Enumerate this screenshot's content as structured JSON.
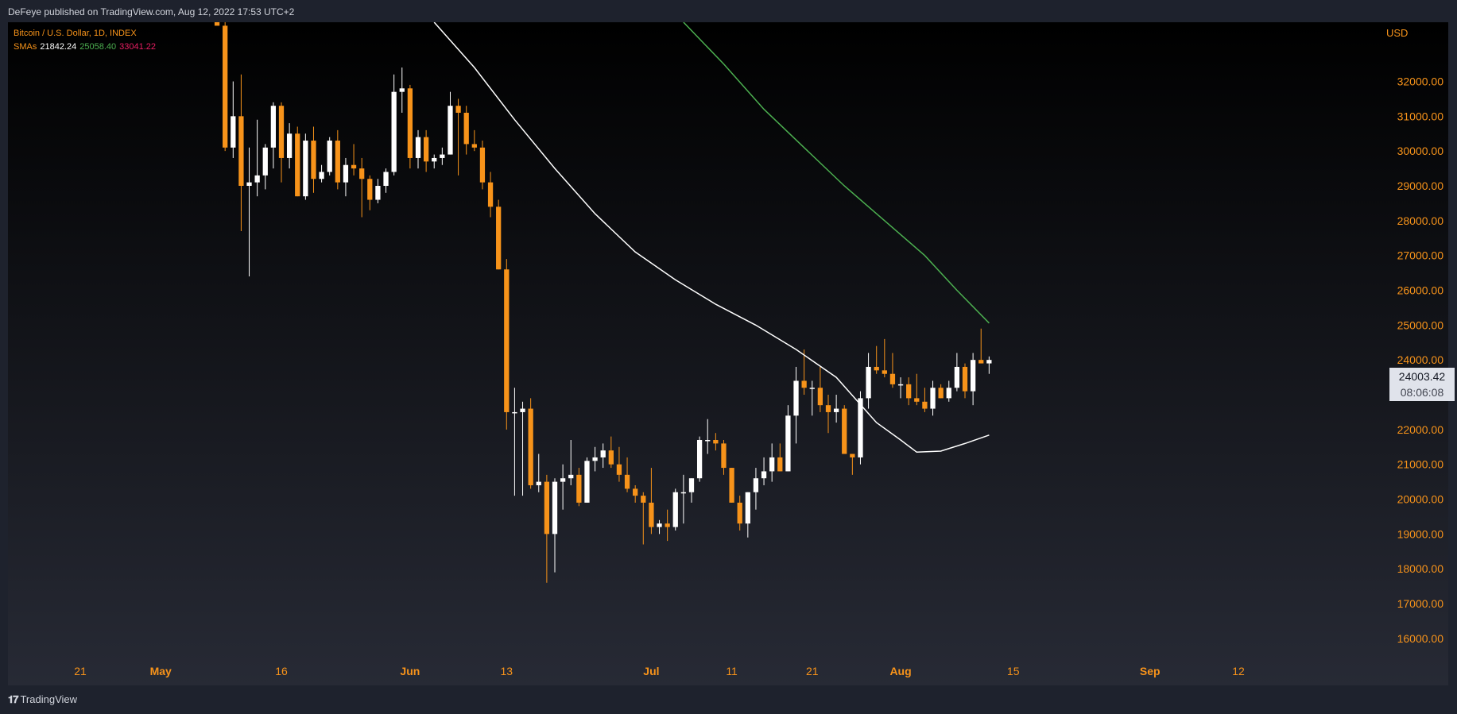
{
  "header": {
    "published": "DeFeye published on TradingView.com, Aug 12, 2022 17:53 UTC+2"
  },
  "legend": {
    "symbol": "Bitcoin / U.S. Dollar, 1D, INDEX",
    "sma_label": "SMAs",
    "sma_values": [
      "21842.24",
      "25058.40",
      "33041.22"
    ]
  },
  "price_tag": {
    "price": "24003.42",
    "countdown": "08:06:08"
  },
  "footer": {
    "brand": "TradingView"
  },
  "colors": {
    "background_top": "#000000",
    "background_bottom": "#272a35",
    "up_candle": "#ffffff",
    "down_candle": "#f7931a",
    "axis_text": "#f7931a",
    "sma_short": "#ffffff",
    "sma_medium": "#4caf50",
    "sma_long": "#e91e63"
  },
  "chart_data": {
    "type": "candlestick",
    "currency": "USD",
    "y_ticks": [
      16000,
      17000,
      18000,
      19000,
      20000,
      21000,
      22000,
      23000,
      24000,
      25000,
      26000,
      27000,
      28000,
      29000,
      30000,
      31000,
      32000
    ],
    "ylim": [
      15700,
      33700
    ],
    "x_ticks": [
      {
        "date": "2022-04-21",
        "label": "21",
        "bold": false
      },
      {
        "date": "2022-05-01",
        "label": "May",
        "bold": true
      },
      {
        "date": "2022-05-16",
        "label": "16",
        "bold": false
      },
      {
        "date": "2022-06-01",
        "label": "Jun",
        "bold": true
      },
      {
        "date": "2022-06-13",
        "label": "13",
        "bold": false
      },
      {
        "date": "2022-07-01",
        "label": "Jul",
        "bold": true
      },
      {
        "date": "2022-07-11",
        "label": "11",
        "bold": false
      },
      {
        "date": "2022-07-21",
        "label": "21",
        "bold": false
      },
      {
        "date": "2022-08-01",
        "label": "Aug",
        "bold": true
      },
      {
        "date": "2022-08-15",
        "label": "15",
        "bold": false
      },
      {
        "date": "2022-09-01",
        "label": "Sep",
        "bold": true
      },
      {
        "date": "2022-09-12",
        "label": "12",
        "bold": false
      }
    ],
    "xlim": [
      "2022-04-12",
      "2022-09-29"
    ],
    "candles": [
      {
        "date": "2022-05-08",
        "o": 34000,
        "h": 34200,
        "l": 33700,
        "c": 33600
      },
      {
        "date": "2022-05-09",
        "o": 33600,
        "h": 34000,
        "l": 30000,
        "c": 30100
      },
      {
        "date": "2022-05-10",
        "o": 30100,
        "h": 32000,
        "l": 29800,
        "c": 31000
      },
      {
        "date": "2022-05-11",
        "o": 31000,
        "h": 32200,
        "l": 27700,
        "c": 29000
      },
      {
        "date": "2022-05-12",
        "o": 29000,
        "h": 30100,
        "l": 26400,
        "c": 29100
      },
      {
        "date": "2022-05-13",
        "o": 29100,
        "h": 30900,
        "l": 28700,
        "c": 29300
      },
      {
        "date": "2022-05-14",
        "o": 29300,
        "h": 30200,
        "l": 28900,
        "c": 30100
      },
      {
        "date": "2022-05-15",
        "o": 30100,
        "h": 31400,
        "l": 29500,
        "c": 31300
      },
      {
        "date": "2022-05-16",
        "o": 31300,
        "h": 31400,
        "l": 29100,
        "c": 29800
      },
      {
        "date": "2022-05-17",
        "o": 29800,
        "h": 30800,
        "l": 29500,
        "c": 30500
      },
      {
        "date": "2022-05-18",
        "o": 30500,
        "h": 30700,
        "l": 28700,
        "c": 28700
      },
      {
        "date": "2022-05-19",
        "o": 28700,
        "h": 30500,
        "l": 28600,
        "c": 30300
      },
      {
        "date": "2022-05-20",
        "o": 30300,
        "h": 30700,
        "l": 28800,
        "c": 29200
      },
      {
        "date": "2022-05-21",
        "o": 29200,
        "h": 29600,
        "l": 29100,
        "c": 29400
      },
      {
        "date": "2022-05-22",
        "o": 29400,
        "h": 30400,
        "l": 29300,
        "c": 30300
      },
      {
        "date": "2022-05-23",
        "o": 30300,
        "h": 30600,
        "l": 28900,
        "c": 29100
      },
      {
        "date": "2022-05-24",
        "o": 29100,
        "h": 29800,
        "l": 28700,
        "c": 29600
      },
      {
        "date": "2022-05-25",
        "o": 29600,
        "h": 30200,
        "l": 29300,
        "c": 29500
      },
      {
        "date": "2022-05-26",
        "o": 29500,
        "h": 29800,
        "l": 28100,
        "c": 29200
      },
      {
        "date": "2022-05-27",
        "o": 29200,
        "h": 29300,
        "l": 28300,
        "c": 28600
      },
      {
        "date": "2022-05-28",
        "o": 28600,
        "h": 29200,
        "l": 28500,
        "c": 29000
      },
      {
        "date": "2022-05-29",
        "o": 29000,
        "h": 29500,
        "l": 28800,
        "c": 29400
      },
      {
        "date": "2022-05-30",
        "o": 29400,
        "h": 32200,
        "l": 29300,
        "c": 31700
      },
      {
        "date": "2022-05-31",
        "o": 31700,
        "h": 32400,
        "l": 31100,
        "c": 31800
      },
      {
        "date": "2022-06-01",
        "o": 31800,
        "h": 31900,
        "l": 29500,
        "c": 29800
      },
      {
        "date": "2022-06-02",
        "o": 29800,
        "h": 30600,
        "l": 29500,
        "c": 30400
      },
      {
        "date": "2022-06-03",
        "o": 30400,
        "h": 30600,
        "l": 29400,
        "c": 29700
      },
      {
        "date": "2022-06-04",
        "o": 29700,
        "h": 29900,
        "l": 29500,
        "c": 29800
      },
      {
        "date": "2022-06-05",
        "o": 29800,
        "h": 30100,
        "l": 29600,
        "c": 29900
      },
      {
        "date": "2022-06-06",
        "o": 29900,
        "h": 31700,
        "l": 29900,
        "c": 31300
      },
      {
        "date": "2022-06-07",
        "o": 31300,
        "h": 31500,
        "l": 29300,
        "c": 31100
      },
      {
        "date": "2022-06-08",
        "o": 31100,
        "h": 31300,
        "l": 29900,
        "c": 30200
      },
      {
        "date": "2022-06-09",
        "o": 30200,
        "h": 30600,
        "l": 30000,
        "c": 30100
      },
      {
        "date": "2022-06-10",
        "o": 30100,
        "h": 30300,
        "l": 28900,
        "c": 29100
      },
      {
        "date": "2022-06-11",
        "o": 29100,
        "h": 29400,
        "l": 28100,
        "c": 28400
      },
      {
        "date": "2022-06-12",
        "o": 28400,
        "h": 28600,
        "l": 26600,
        "c": 26600
      },
      {
        "date": "2022-06-13",
        "o": 26600,
        "h": 26900,
        "l": 22000,
        "c": 22500
      },
      {
        "date": "2022-06-14",
        "o": 22500,
        "h": 23200,
        "l": 20100,
        "c": 22500
      },
      {
        "date": "2022-06-15",
        "o": 22500,
        "h": 22800,
        "l": 20100,
        "c": 22600
      },
      {
        "date": "2022-06-16",
        "o": 22600,
        "h": 22900,
        "l": 20300,
        "c": 20400
      },
      {
        "date": "2022-06-17",
        "o": 20400,
        "h": 21300,
        "l": 20200,
        "c": 20500
      },
      {
        "date": "2022-06-18",
        "o": 20500,
        "h": 20700,
        "l": 17600,
        "c": 19000
      },
      {
        "date": "2022-06-19",
        "o": 19000,
        "h": 20600,
        "l": 17900,
        "c": 20500
      },
      {
        "date": "2022-06-20",
        "o": 20500,
        "h": 21000,
        "l": 19700,
        "c": 20600
      },
      {
        "date": "2022-06-21",
        "o": 20600,
        "h": 21700,
        "l": 20400,
        "c": 20700
      },
      {
        "date": "2022-06-22",
        "o": 20700,
        "h": 20900,
        "l": 19800,
        "c": 19900
      },
      {
        "date": "2022-06-23",
        "o": 19900,
        "h": 21200,
        "l": 19900,
        "c": 21100
      },
      {
        "date": "2022-06-24",
        "o": 21100,
        "h": 21500,
        "l": 20800,
        "c": 21200
      },
      {
        "date": "2022-06-25",
        "o": 21200,
        "h": 21600,
        "l": 20900,
        "c": 21400
      },
      {
        "date": "2022-06-26",
        "o": 21400,
        "h": 21800,
        "l": 20900,
        "c": 21000
      },
      {
        "date": "2022-06-27",
        "o": 21000,
        "h": 21500,
        "l": 20500,
        "c": 20700
      },
      {
        "date": "2022-06-28",
        "o": 20700,
        "h": 21200,
        "l": 20200,
        "c": 20300
      },
      {
        "date": "2022-06-29",
        "o": 20300,
        "h": 20400,
        "l": 19900,
        "c": 20100
      },
      {
        "date": "2022-06-30",
        "o": 20100,
        "h": 20200,
        "l": 18700,
        "c": 19900
      },
      {
        "date": "2022-07-01",
        "o": 19900,
        "h": 20900,
        "l": 19000,
        "c": 19200
      },
      {
        "date": "2022-07-02",
        "o": 19200,
        "h": 19400,
        "l": 19000,
        "c": 19300
      },
      {
        "date": "2022-07-03",
        "o": 19300,
        "h": 19700,
        "l": 18800,
        "c": 19200
      },
      {
        "date": "2022-07-04",
        "o": 19200,
        "h": 20300,
        "l": 19100,
        "c": 20200
      },
      {
        "date": "2022-07-05",
        "o": 20200,
        "h": 20700,
        "l": 19300,
        "c": 20200
      },
      {
        "date": "2022-07-06",
        "o": 20200,
        "h": 20600,
        "l": 19900,
        "c": 20600
      },
      {
        "date": "2022-07-07",
        "o": 20600,
        "h": 21800,
        "l": 20500,
        "c": 21700
      },
      {
        "date": "2022-07-08",
        "o": 21700,
        "h": 22300,
        "l": 21300,
        "c": 21700
      },
      {
        "date": "2022-07-09",
        "o": 21700,
        "h": 21900,
        "l": 21400,
        "c": 21600
      },
      {
        "date": "2022-07-10",
        "o": 21600,
        "h": 21700,
        "l": 20700,
        "c": 20900
      },
      {
        "date": "2022-07-11",
        "o": 20900,
        "h": 20900,
        "l": 19900,
        "c": 19900
      },
      {
        "date": "2022-07-12",
        "o": 19900,
        "h": 20100,
        "l": 19100,
        "c": 19300
      },
      {
        "date": "2022-07-13",
        "o": 19300,
        "h": 20200,
        "l": 18900,
        "c": 20200
      },
      {
        "date": "2022-07-14",
        "o": 20200,
        "h": 20900,
        "l": 19700,
        "c": 20600
      },
      {
        "date": "2022-07-15",
        "o": 20600,
        "h": 21200,
        "l": 20400,
        "c": 20800
      },
      {
        "date": "2022-07-16",
        "o": 20800,
        "h": 21600,
        "l": 20500,
        "c": 21200
      },
      {
        "date": "2022-07-17",
        "o": 21200,
        "h": 21600,
        "l": 20800,
        "c": 20800
      },
      {
        "date": "2022-07-18",
        "o": 20800,
        "h": 22700,
        "l": 20800,
        "c": 22400
      },
      {
        "date": "2022-07-19",
        "o": 22400,
        "h": 23800,
        "l": 21600,
        "c": 23400
      },
      {
        "date": "2022-07-20",
        "o": 23400,
        "h": 24300,
        "l": 23000,
        "c": 23200
      },
      {
        "date": "2022-07-21",
        "o": 23200,
        "h": 23400,
        "l": 22400,
        "c": 23200
      },
      {
        "date": "2022-07-22",
        "o": 23200,
        "h": 23800,
        "l": 22500,
        "c": 22700
      },
      {
        "date": "2022-07-23",
        "o": 22700,
        "h": 23000,
        "l": 21900,
        "c": 22500
      },
      {
        "date": "2022-07-24",
        "o": 22500,
        "h": 23000,
        "l": 22200,
        "c": 22600
      },
      {
        "date": "2022-07-25",
        "o": 22600,
        "h": 22700,
        "l": 21300,
        "c": 21300
      },
      {
        "date": "2022-07-26",
        "o": 21300,
        "h": 21300,
        "l": 20700,
        "c": 21200
      },
      {
        "date": "2022-07-27",
        "o": 21200,
        "h": 23100,
        "l": 21000,
        "c": 22900
      },
      {
        "date": "2022-07-28",
        "o": 22900,
        "h": 24200,
        "l": 22600,
        "c": 23800
      },
      {
        "date": "2022-07-29",
        "o": 23800,
        "h": 24400,
        "l": 23600,
        "c": 23700
      },
      {
        "date": "2022-07-30",
        "o": 23700,
        "h": 24600,
        "l": 23500,
        "c": 23600
      },
      {
        "date": "2022-07-31",
        "o": 23600,
        "h": 24200,
        "l": 23200,
        "c": 23300
      },
      {
        "date": "2022-08-01",
        "o": 23300,
        "h": 23500,
        "l": 22900,
        "c": 23300
      },
      {
        "date": "2022-08-02",
        "o": 23300,
        "h": 23500,
        "l": 22700,
        "c": 22900
      },
      {
        "date": "2022-08-03",
        "o": 22900,
        "h": 23600,
        "l": 22700,
        "c": 22800
      },
      {
        "date": "2022-08-04",
        "o": 22800,
        "h": 23200,
        "l": 22500,
        "c": 22600
      },
      {
        "date": "2022-08-05",
        "o": 22600,
        "h": 23400,
        "l": 22400,
        "c": 23200
      },
      {
        "date": "2022-08-06",
        "o": 23200,
        "h": 23300,
        "l": 22900,
        "c": 22900
      },
      {
        "date": "2022-08-07",
        "o": 22900,
        "h": 23400,
        "l": 22800,
        "c": 23200
      },
      {
        "date": "2022-08-08",
        "o": 23200,
        "h": 24200,
        "l": 23100,
        "c": 23800
      },
      {
        "date": "2022-08-09",
        "o": 23800,
        "h": 23900,
        "l": 22900,
        "c": 23100
      },
      {
        "date": "2022-08-10",
        "o": 23100,
        "h": 24200,
        "l": 22700,
        "c": 24000
      },
      {
        "date": "2022-08-11",
        "o": 24000,
        "h": 24900,
        "l": 23900,
        "c": 23900
      },
      {
        "date": "2022-08-12",
        "o": 23900,
        "h": 24100,
        "l": 23600,
        "c": 24000
      }
    ],
    "sma_series": [
      {
        "color": "#ffffff",
        "points": [
          [
            "2022-06-04",
            33700
          ],
          [
            "2022-06-09",
            32400
          ],
          [
            "2022-06-14",
            30900
          ],
          [
            "2022-06-19",
            29500
          ],
          [
            "2022-06-24",
            28200
          ],
          [
            "2022-06-29",
            27100
          ],
          [
            "2022-07-04",
            26300
          ],
          [
            "2022-07-09",
            25600
          ],
          [
            "2022-07-14",
            25000
          ],
          [
            "2022-07-19",
            24300
          ],
          [
            "2022-07-24",
            23500
          ],
          [
            "2022-07-29",
            22200
          ],
          [
            "2022-08-01",
            21700
          ],
          [
            "2022-08-03",
            21350
          ],
          [
            "2022-08-06",
            21380
          ],
          [
            "2022-08-09",
            21600
          ],
          [
            "2022-08-12",
            21842
          ]
        ]
      },
      {
        "color": "#4caf50",
        "points": [
          [
            "2022-07-05",
            33700
          ],
          [
            "2022-07-10",
            32500
          ],
          [
            "2022-07-15",
            31200
          ],
          [
            "2022-07-20",
            30100
          ],
          [
            "2022-07-25",
            29000
          ],
          [
            "2022-07-30",
            28000
          ],
          [
            "2022-08-04",
            27000
          ],
          [
            "2022-08-08",
            26000
          ],
          [
            "2022-08-12",
            25058
          ]
        ]
      }
    ]
  }
}
